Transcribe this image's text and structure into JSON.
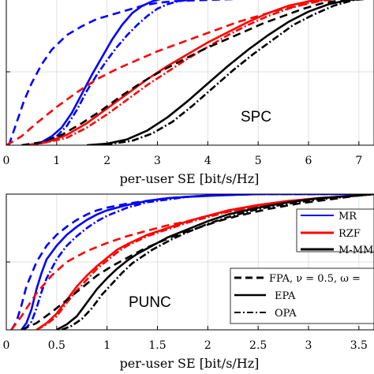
{
  "chart_data": [
    {
      "type": "line",
      "xlabel": "per-user SE [bit/s/Hz]",
      "xlim": [
        0,
        7.3
      ],
      "ylim": [
        0,
        1
      ],
      "xticks": [
        "0",
        "1",
        "2",
        "3",
        "4",
        "5",
        "6",
        "7"
      ],
      "xtick_values": [
        0,
        1,
        2,
        3,
        4,
        5,
        6,
        7
      ],
      "grid": true,
      "annotation": "SPC",
      "series": [
        {
          "color": "#0000ff",
          "style": "solid",
          "x": [
            0.5,
            0.7,
            0.9,
            1.1,
            1.3,
            1.5,
            1.7,
            1.9,
            2.1,
            2.3,
            2.5,
            2.7,
            2.9,
            3.1,
            3.4,
            4,
            7.3
          ],
          "y": [
            0,
            0.02,
            0.06,
            0.12,
            0.22,
            0.35,
            0.48,
            0.6,
            0.72,
            0.82,
            0.9,
            0.95,
            0.98,
            1,
            1,
            1,
            1
          ]
        },
        {
          "color": "#0000ff",
          "style": "dashdot",
          "x": [
            0.5,
            0.75,
            1,
            1.2,
            1.4,
            1.6,
            1.8,
            2,
            2.2,
            2.4,
            2.6,
            2.8,
            3,
            3.2,
            3.4,
            3.6,
            3.8,
            4.2,
            7.3
          ],
          "y": [
            0,
            0.02,
            0.06,
            0.13,
            0.24,
            0.37,
            0.48,
            0.58,
            0.67,
            0.75,
            0.82,
            0.88,
            0.93,
            0.96,
            0.98,
            0.99,
            1,
            1,
            1
          ]
        },
        {
          "color": "#0000ff",
          "style": "dashed",
          "x": [
            0.05,
            0.1,
            0.2,
            0.35,
            0.5,
            0.7,
            0.9,
            1.2,
            1.5,
            1.8,
            2.1,
            2.4,
            2.7,
            3,
            3.3,
            3.6,
            4,
            4.5,
            5,
            5.5,
            6,
            7.3
          ],
          "y": [
            0,
            0.05,
            0.15,
            0.3,
            0.42,
            0.55,
            0.65,
            0.75,
            0.81,
            0.86,
            0.89,
            0.92,
            0.95,
            0.97,
            0.98,
            0.985,
            0.99,
            0.995,
            1,
            1,
            1,
            1
          ]
        },
        {
          "color": "#ff0000",
          "style": "solid",
          "x": [
            0.4,
            0.8,
            1.2,
            1.6,
            2,
            2.4,
            2.8,
            3.2,
            3.6,
            4,
            4.4,
            4.8,
            5.2,
            5.6,
            6,
            6.5,
            7.3
          ],
          "y": [
            0,
            0.02,
            0.07,
            0.15,
            0.25,
            0.35,
            0.45,
            0.54,
            0.62,
            0.7,
            0.77,
            0.84,
            0.9,
            0.95,
            0.98,
            1,
            1
          ]
        },
        {
          "color": "#ff0000",
          "style": "dashdot",
          "x": [
            0.4,
            0.8,
            1.2,
            1.6,
            2,
            2.4,
            2.8,
            3.2,
            3.6,
            4,
            4.4,
            4.8,
            5.2,
            5.6,
            6,
            6.5,
            7.3
          ],
          "y": [
            0,
            0.02,
            0.05,
            0.12,
            0.21,
            0.31,
            0.41,
            0.5,
            0.59,
            0.67,
            0.75,
            0.82,
            0.88,
            0.93,
            0.97,
            1,
            1
          ]
        },
        {
          "color": "#ff0000",
          "style": "dashed",
          "x": [
            0,
            0.3,
            0.6,
            1,
            1.4,
            1.8,
            2.2,
            2.6,
            3,
            3.4,
            3.8,
            4.2,
            4.6,
            5,
            5.4,
            5.8,
            6.2,
            6.6,
            7.3
          ],
          "y": [
            0,
            0.06,
            0.15,
            0.26,
            0.36,
            0.45,
            0.52,
            0.58,
            0.64,
            0.69,
            0.74,
            0.79,
            0.84,
            0.88,
            0.92,
            0.95,
            0.98,
            1,
            1
          ]
        },
        {
          "color": "#000000",
          "style": "solid",
          "x": [
            1.6,
            2,
            2.4,
            2.8,
            3.2,
            3.6,
            4,
            4.4,
            4.8,
            5.2,
            5.6,
            6,
            6.4,
            6.8,
            7.3
          ],
          "y": [
            0,
            0.01,
            0.04,
            0.1,
            0.19,
            0.3,
            0.42,
            0.54,
            0.65,
            0.75,
            0.84,
            0.91,
            0.96,
            0.99,
            1
          ]
        },
        {
          "color": "#000000",
          "style": "dashdot",
          "x": [
            1.7,
            2.1,
            2.5,
            2.9,
            3.3,
            3.7,
            4.1,
            4.5,
            4.9,
            5.3,
            5.7,
            6.1,
            6.5,
            6.9,
            7.3
          ],
          "y": [
            0,
            0.01,
            0.03,
            0.08,
            0.16,
            0.27,
            0.39,
            0.51,
            0.62,
            0.72,
            0.82,
            0.89,
            0.95,
            0.99,
            1
          ]
        },
        {
          "color": "#000000",
          "style": "dashed",
          "x": [
            0.3,
            0.7,
            1.1,
            1.5,
            1.9,
            2.3,
            2.7,
            3.1,
            3.5,
            3.9,
            4.3,
            4.7,
            5.1,
            5.5,
            5.9,
            6.3,
            6.7,
            7.3
          ],
          "y": [
            0,
            0.02,
            0.07,
            0.15,
            0.24,
            0.34,
            0.43,
            0.51,
            0.58,
            0.65,
            0.71,
            0.77,
            0.83,
            0.88,
            0.93,
            0.97,
            0.99,
            1
          ]
        }
      ]
    },
    {
      "type": "line",
      "xlabel": "per-user SE [bit/s/Hz]",
      "xlim": [
        0,
        3.65
      ],
      "ylim": [
        0,
        1
      ],
      "xticks": [
        "0",
        "0.5",
        "1",
        "1.5",
        "2",
        "2.5",
        "3",
        "3.5"
      ],
      "xtick_values": [
        0,
        0.5,
        1,
        1.5,
        2,
        2.5,
        3,
        3.5
      ],
      "grid": true,
      "annotation": "PUNC",
      "legend": {
        "position": "right",
        "colors": [
          {
            "label": "MR",
            "color": "#0000ff"
          },
          {
            "label": "RZF",
            "color": "#ff0000"
          },
          {
            "label": "M-MMSE",
            "color": "#000000"
          }
        ],
        "styles": [
          {
            "label": "FPA, ν = 0.5, ω =",
            "style": "dashed"
          },
          {
            "label": "EPA",
            "style": "solid"
          },
          {
            "label": "OPA",
            "style": "dashdot"
          }
        ]
      },
      "series": [
        {
          "color": "#0000ff",
          "style": "solid",
          "x": [
            0.15,
            0.2,
            0.25,
            0.3,
            0.35,
            0.4,
            0.5,
            0.6,
            0.7,
            0.8,
            0.9,
            1,
            1.2,
            1.4,
            1.6,
            1.8,
            2.1,
            2.5,
            3,
            3.65
          ],
          "y": [
            0,
            0.05,
            0.15,
            0.3,
            0.42,
            0.52,
            0.62,
            0.7,
            0.76,
            0.81,
            0.85,
            0.88,
            0.92,
            0.95,
            0.97,
            0.98,
            0.99,
            1,
            1,
            1
          ]
        },
        {
          "color": "#0000ff",
          "style": "dashdot",
          "x": [
            0.18,
            0.25,
            0.3,
            0.35,
            0.4,
            0.5,
            0.6,
            0.7,
            0.8,
            0.9,
            1,
            1.1,
            1.2,
            1.4,
            1.6,
            1.8,
            2,
            2.5,
            3,
            3.65
          ],
          "y": [
            0,
            0.06,
            0.16,
            0.28,
            0.38,
            0.52,
            0.62,
            0.69,
            0.75,
            0.8,
            0.84,
            0.87,
            0.9,
            0.94,
            0.96,
            0.98,
            0.99,
            1,
            1,
            1
          ]
        },
        {
          "color": "#0000ff",
          "style": "dashed",
          "x": [
            0.05,
            0.1,
            0.15,
            0.2,
            0.3,
            0.4,
            0.5,
            0.6,
            0.7,
            0.8,
            0.9,
            1,
            1.2,
            1.4,
            1.6,
            1.8,
            2,
            2.5,
            3,
            3.65
          ],
          "y": [
            0,
            0.06,
            0.18,
            0.32,
            0.5,
            0.62,
            0.7,
            0.76,
            0.81,
            0.85,
            0.88,
            0.9,
            0.93,
            0.95,
            0.97,
            0.98,
            0.99,
            1,
            1,
            1
          ]
        },
        {
          "color": "#ff0000",
          "style": "solid",
          "x": [
            0.3,
            0.4,
            0.5,
            0.6,
            0.7,
            0.8,
            0.9,
            1,
            1.1,
            1.2,
            1.4,
            1.6,
            1.8,
            2,
            2.2,
            2.5,
            2.8,
            3.1,
            3.5,
            3.65
          ],
          "y": [
            0,
            0.05,
            0.12,
            0.22,
            0.32,
            0.4,
            0.47,
            0.53,
            0.59,
            0.63,
            0.7,
            0.75,
            0.8,
            0.84,
            0.88,
            0.92,
            0.95,
            0.97,
            0.99,
            1
          ]
        },
        {
          "color": "#ff0000",
          "style": "dashdot",
          "x": [
            0.3,
            0.4,
            0.5,
            0.6,
            0.7,
            0.8,
            0.9,
            1,
            1.1,
            1.2,
            1.4,
            1.6,
            1.8,
            2,
            2.2,
            2.5,
            2.8,
            3.1,
            3.5,
            3.65
          ],
          "y": [
            0,
            0.04,
            0.1,
            0.2,
            0.29,
            0.37,
            0.45,
            0.51,
            0.57,
            0.62,
            0.69,
            0.74,
            0.79,
            0.83,
            0.87,
            0.91,
            0.94,
            0.97,
            0.99,
            1
          ]
        },
        {
          "color": "#ff0000",
          "style": "dashed",
          "x": [
            0.05,
            0.15,
            0.3,
            0.45,
            0.6,
            0.8,
            1,
            1.2,
            1.4,
            1.6,
            1.8,
            2,
            2.2,
            2.5,
            2.8,
            3.1,
            3.5,
            3.65
          ],
          "y": [
            0,
            0.1,
            0.27,
            0.4,
            0.5,
            0.58,
            0.64,
            0.69,
            0.73,
            0.77,
            0.8,
            0.84,
            0.87,
            0.91,
            0.94,
            0.97,
            0.99,
            1
          ]
        },
        {
          "color": "#000000",
          "style": "solid",
          "x": [
            0.5,
            0.6,
            0.7,
            0.8,
            0.9,
            1,
            1.1,
            1.2,
            1.3,
            1.4,
            1.5,
            1.6,
            1.8,
            2,
            2.2,
            2.5,
            2.8,
            3.1,
            3.5,
            3.65
          ],
          "y": [
            0,
            0.04,
            0.1,
            0.2,
            0.3,
            0.38,
            0.45,
            0.51,
            0.56,
            0.6,
            0.64,
            0.68,
            0.74,
            0.8,
            0.85,
            0.9,
            0.94,
            0.97,
            0.99,
            1
          ]
        },
        {
          "color": "#000000",
          "style": "dashdot",
          "x": [
            0.55,
            0.65,
            0.75,
            0.85,
            0.95,
            1.05,
            1.15,
            1.25,
            1.35,
            1.45,
            1.55,
            1.65,
            1.8,
            2,
            2.2,
            2.5,
            2.8,
            3.1,
            3.5,
            3.65
          ],
          "y": [
            0,
            0.03,
            0.08,
            0.16,
            0.26,
            0.34,
            0.42,
            0.49,
            0.54,
            0.59,
            0.63,
            0.67,
            0.72,
            0.78,
            0.83,
            0.89,
            0.93,
            0.96,
            0.99,
            1
          ]
        },
        {
          "color": "#000000",
          "style": "dashed",
          "x": [
            0.15,
            0.3,
            0.45,
            0.6,
            0.75,
            0.9,
            1.05,
            1.2,
            1.35,
            1.5,
            1.7,
            1.9,
            2.1,
            2.3,
            2.6,
            2.9,
            3.2,
            3.5,
            3.65
          ],
          "y": [
            0,
            0.05,
            0.13,
            0.22,
            0.31,
            0.4,
            0.47,
            0.53,
            0.59,
            0.64,
            0.7,
            0.75,
            0.8,
            0.84,
            0.89,
            0.93,
            0.96,
            0.99,
            1
          ]
        }
      ]
    }
  ]
}
